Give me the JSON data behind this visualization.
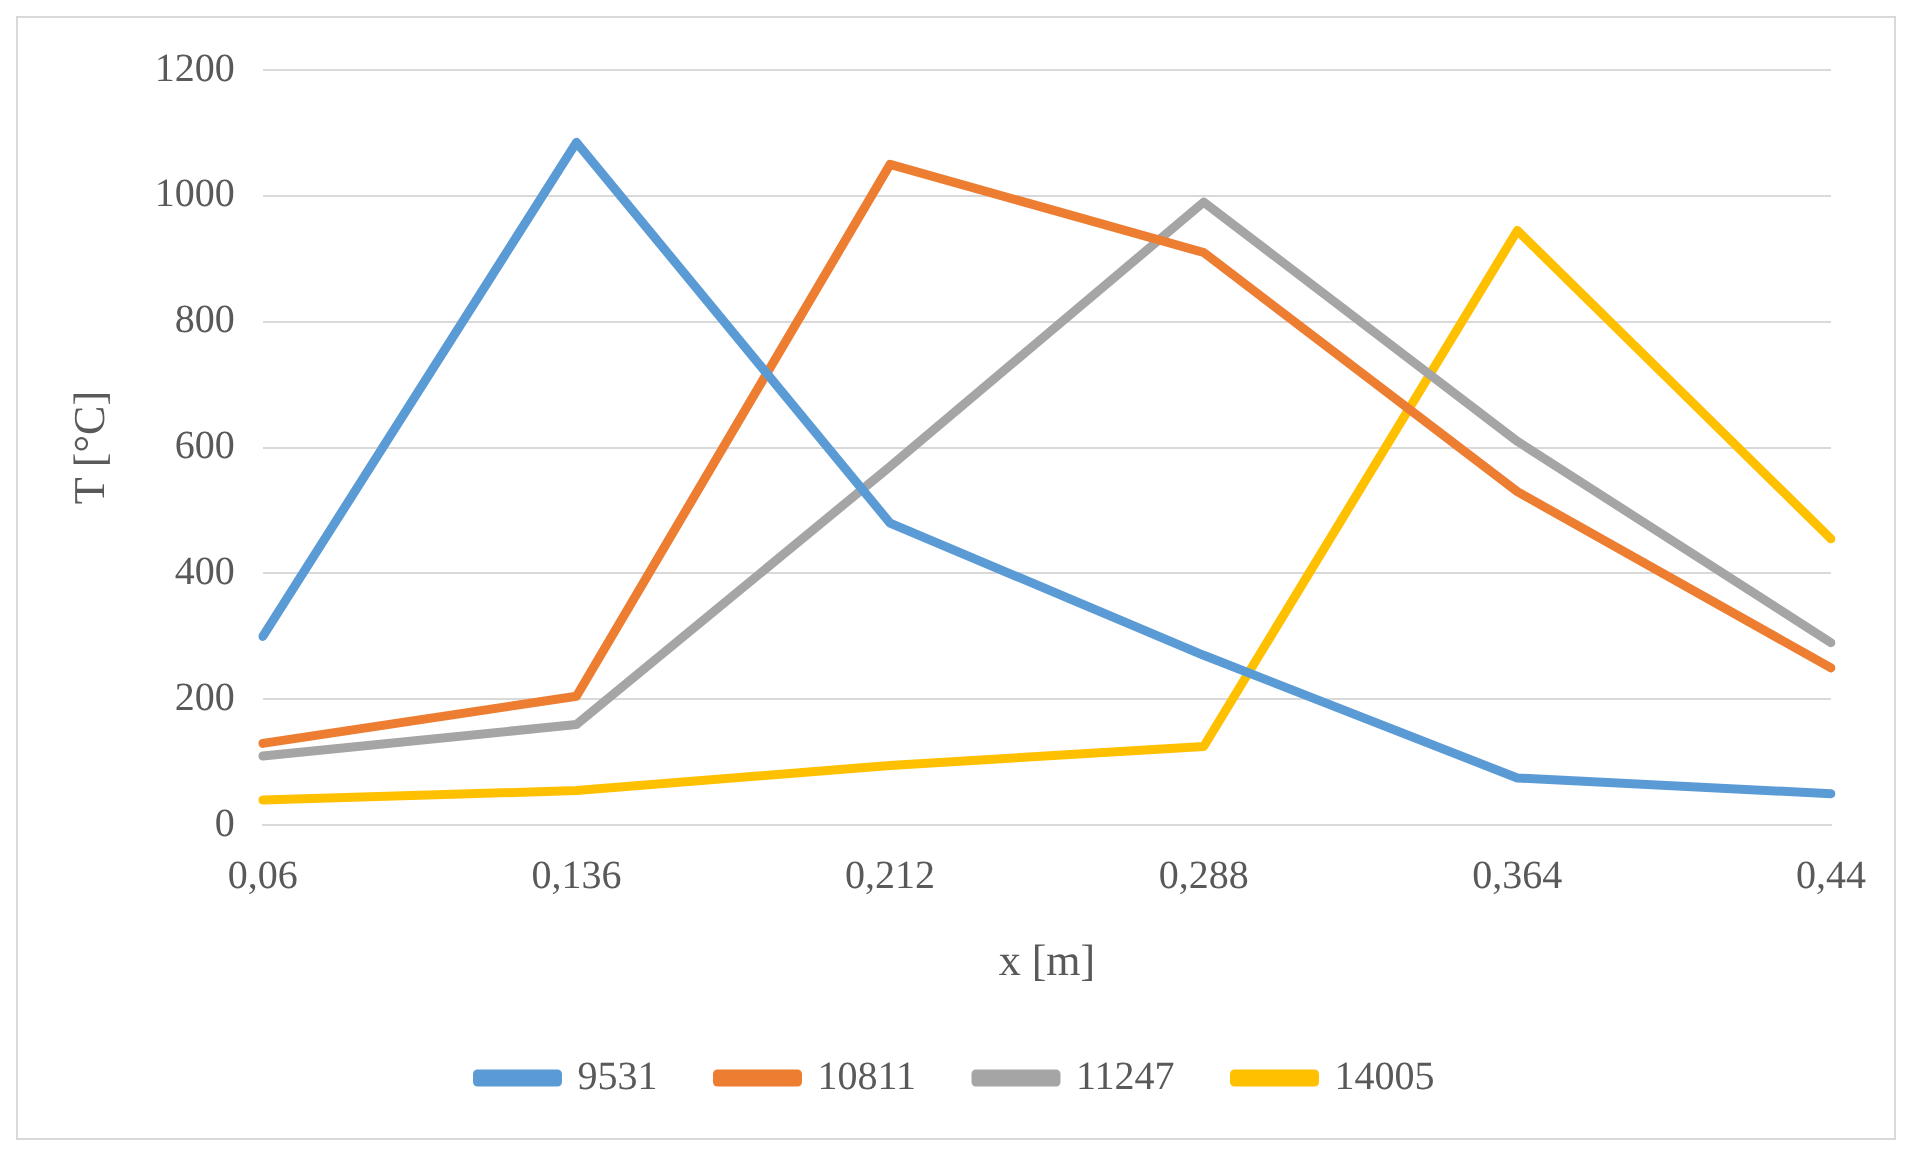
{
  "chart_data": {
    "type": "line",
    "xlabel": "x [m]",
    "ylabel": "T [°C]",
    "categories": [
      "0,06",
      "0,136",
      "0,212",
      "0,288",
      "0,364",
      "0,44"
    ],
    "series": [
      {
        "name": "9531",
        "color": "#5b9bd5",
        "values": [
          300,
          1085,
          480,
          270,
          75,
          50
        ]
      },
      {
        "name": "10811",
        "color": "#ed7d31",
        "values": [
          130,
          205,
          1050,
          910,
          530,
          250
        ]
      },
      {
        "name": "11247",
        "color": "#a5a5a5",
        "values": [
          110,
          160,
          570,
          990,
          610,
          290
        ]
      },
      {
        "name": "14005",
        "color": "#ffc000",
        "values": [
          40,
          55,
          95,
          125,
          945,
          455
        ]
      }
    ],
    "ylim": [
      0,
      1200
    ],
    "yticks": [
      0,
      200,
      400,
      600,
      800,
      1000,
      1200
    ],
    "grid": "y",
    "legend": "bottom",
    "marker": "none",
    "line_style": "solid"
  }
}
